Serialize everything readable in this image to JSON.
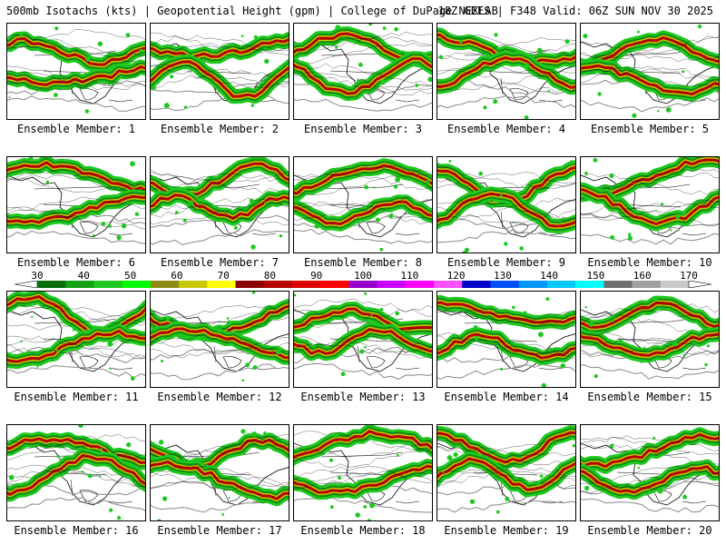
{
  "header": {
    "left": "500mb Isotachs (kts) | Geopotential Height (gpm) | College of DuPage NEXLAB",
    "right": "18Z GEFS | F348 Valid: 06Z SUN NOV 30 2025"
  },
  "colorbar": {
    "ticks": [
      "30",
      "40",
      "50",
      "60",
      "70",
      "80",
      "90",
      "100",
      "110",
      "120",
      "130",
      "140",
      "150",
      "160",
      "170"
    ],
    "colors": [
      "#0a6e0a",
      "#14a014",
      "#1ec81e",
      "#00ff00",
      "#8c8c14",
      "#c8c800",
      "#ffff00",
      "#8b0000",
      "#b40000",
      "#dc0000",
      "#ff0000",
      "#9600c8",
      "#c800ff",
      "#ff00ff",
      "#ff50ff",
      "#0000c8",
      "#0050ff",
      "#0096ff",
      "#00c8ff",
      "#00ffff",
      "#6e6e6e",
      "#a0a0a0",
      "#c8c8c8"
    ]
  },
  "panels": [
    {
      "label": "Ensemble Member: 1",
      "icon": "jet-stream-map"
    },
    {
      "label": "Ensemble Member: 2",
      "icon": "jet-stream-map"
    },
    {
      "label": "Ensemble Member: 3",
      "icon": "jet-stream-map"
    },
    {
      "label": "Ensemble Member: 4",
      "icon": "jet-stream-map"
    },
    {
      "label": "Ensemble Member: 5",
      "icon": "jet-stream-map"
    },
    {
      "label": "Ensemble Member: 6",
      "icon": "jet-stream-map"
    },
    {
      "label": "Ensemble Member: 7",
      "icon": "jet-stream-map"
    },
    {
      "label": "Ensemble Member: 8",
      "icon": "jet-stream-map"
    },
    {
      "label": "Ensemble Member: 9",
      "icon": "jet-stream-map"
    },
    {
      "label": "Ensemble Member: 10",
      "icon": "jet-stream-map"
    },
    {
      "label": "Ensemble Member: 11",
      "icon": "jet-stream-map"
    },
    {
      "label": "Ensemble Member: 12",
      "icon": "jet-stream-map"
    },
    {
      "label": "Ensemble Member: 13",
      "icon": "jet-stream-map"
    },
    {
      "label": "Ensemble Member: 14",
      "icon": "jet-stream-map"
    },
    {
      "label": "Ensemble Member: 15",
      "icon": "jet-stream-map"
    },
    {
      "label": "Ensemble Member: 16",
      "icon": "jet-stream-map"
    },
    {
      "label": "Ensemble Member: 17",
      "icon": "jet-stream-map"
    },
    {
      "label": "Ensemble Member: 18",
      "icon": "jet-stream-map"
    },
    {
      "label": "Ensemble Member: 19",
      "icon": "jet-stream-map"
    },
    {
      "label": "Ensemble Member: 20",
      "icon": "jet-stream-map"
    }
  ]
}
